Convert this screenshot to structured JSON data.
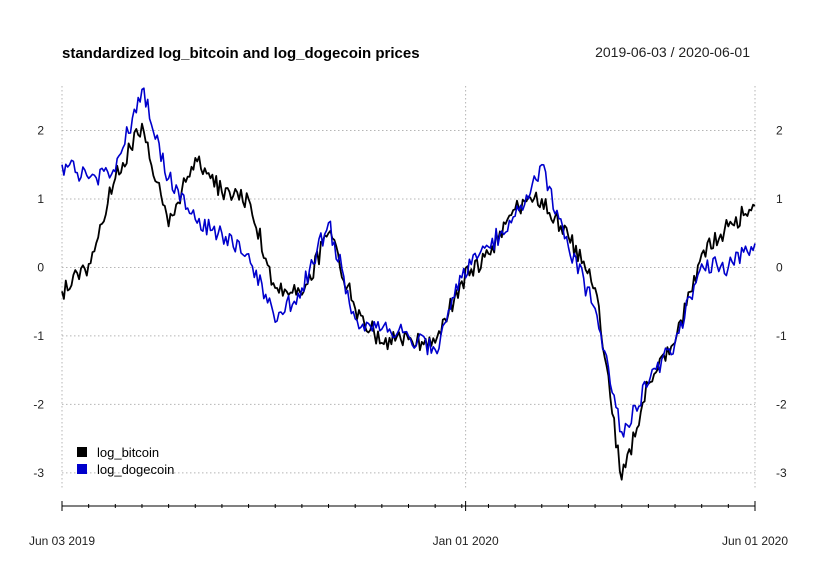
{
  "chart_data": {
    "type": "line",
    "title": "standardized log_bitcoin and log_dogecoin prices",
    "date_range": "2019-06-03 / 2020-06-01",
    "xlabel": "",
    "ylabel": "",
    "x_ticks": [
      "Jun 03 2019",
      "Jan 01 2020",
      "Jun 01 2020"
    ],
    "y_ticks": [
      -3,
      -2,
      -1,
      0,
      1,
      2
    ],
    "ylim": [
      -3.25,
      2.65
    ],
    "grid": true,
    "legend_position": "bottom-left",
    "x": [
      "2019-06-03",
      "2019-06-17",
      "2019-07-01",
      "2019-07-15",
      "2019-07-29",
      "2019-08-12",
      "2019-08-26",
      "2019-09-09",
      "2019-09-23",
      "2019-10-07",
      "2019-10-21",
      "2019-11-04",
      "2019-11-18",
      "2019-12-02",
      "2019-12-16",
      "2019-12-30",
      "2020-01-13",
      "2020-01-27",
      "2020-02-10",
      "2020-02-24",
      "2020-03-09",
      "2020-03-23",
      "2020-04-06",
      "2020-04-20",
      "2020-05-04",
      "2020-05-18",
      "2020-06-01"
    ],
    "series": [
      {
        "name": "log_bitcoin",
        "color": "#000000",
        "values": [
          -0.35,
          0.05,
          1.3,
          2.1,
          0.6,
          1.6,
          1.1,
          1.0,
          -0.3,
          -0.4,
          0.5,
          -0.6,
          -1.1,
          -1.05,
          -1.1,
          -0.2,
          0.2,
          0.85,
          1.0,
          0.45,
          -0.3,
          -3.1,
          -1.7,
          -1.1,
          0.2,
          0.6,
          0.9
        ]
      },
      {
        "name": "log_dogecoin",
        "color": "#0000cc",
        "values": [
          1.5,
          1.3,
          1.4,
          2.6,
          1.3,
          0.7,
          0.5,
          0.2,
          -0.8,
          -0.3,
          0.65,
          -0.75,
          -0.9,
          -1.0,
          -1.2,
          -0.15,
          0.3,
          0.75,
          1.5,
          0.3,
          -0.6,
          -2.4,
          -1.7,
          -1.1,
          0.05,
          0.0,
          0.35
        ]
      }
    ]
  }
}
